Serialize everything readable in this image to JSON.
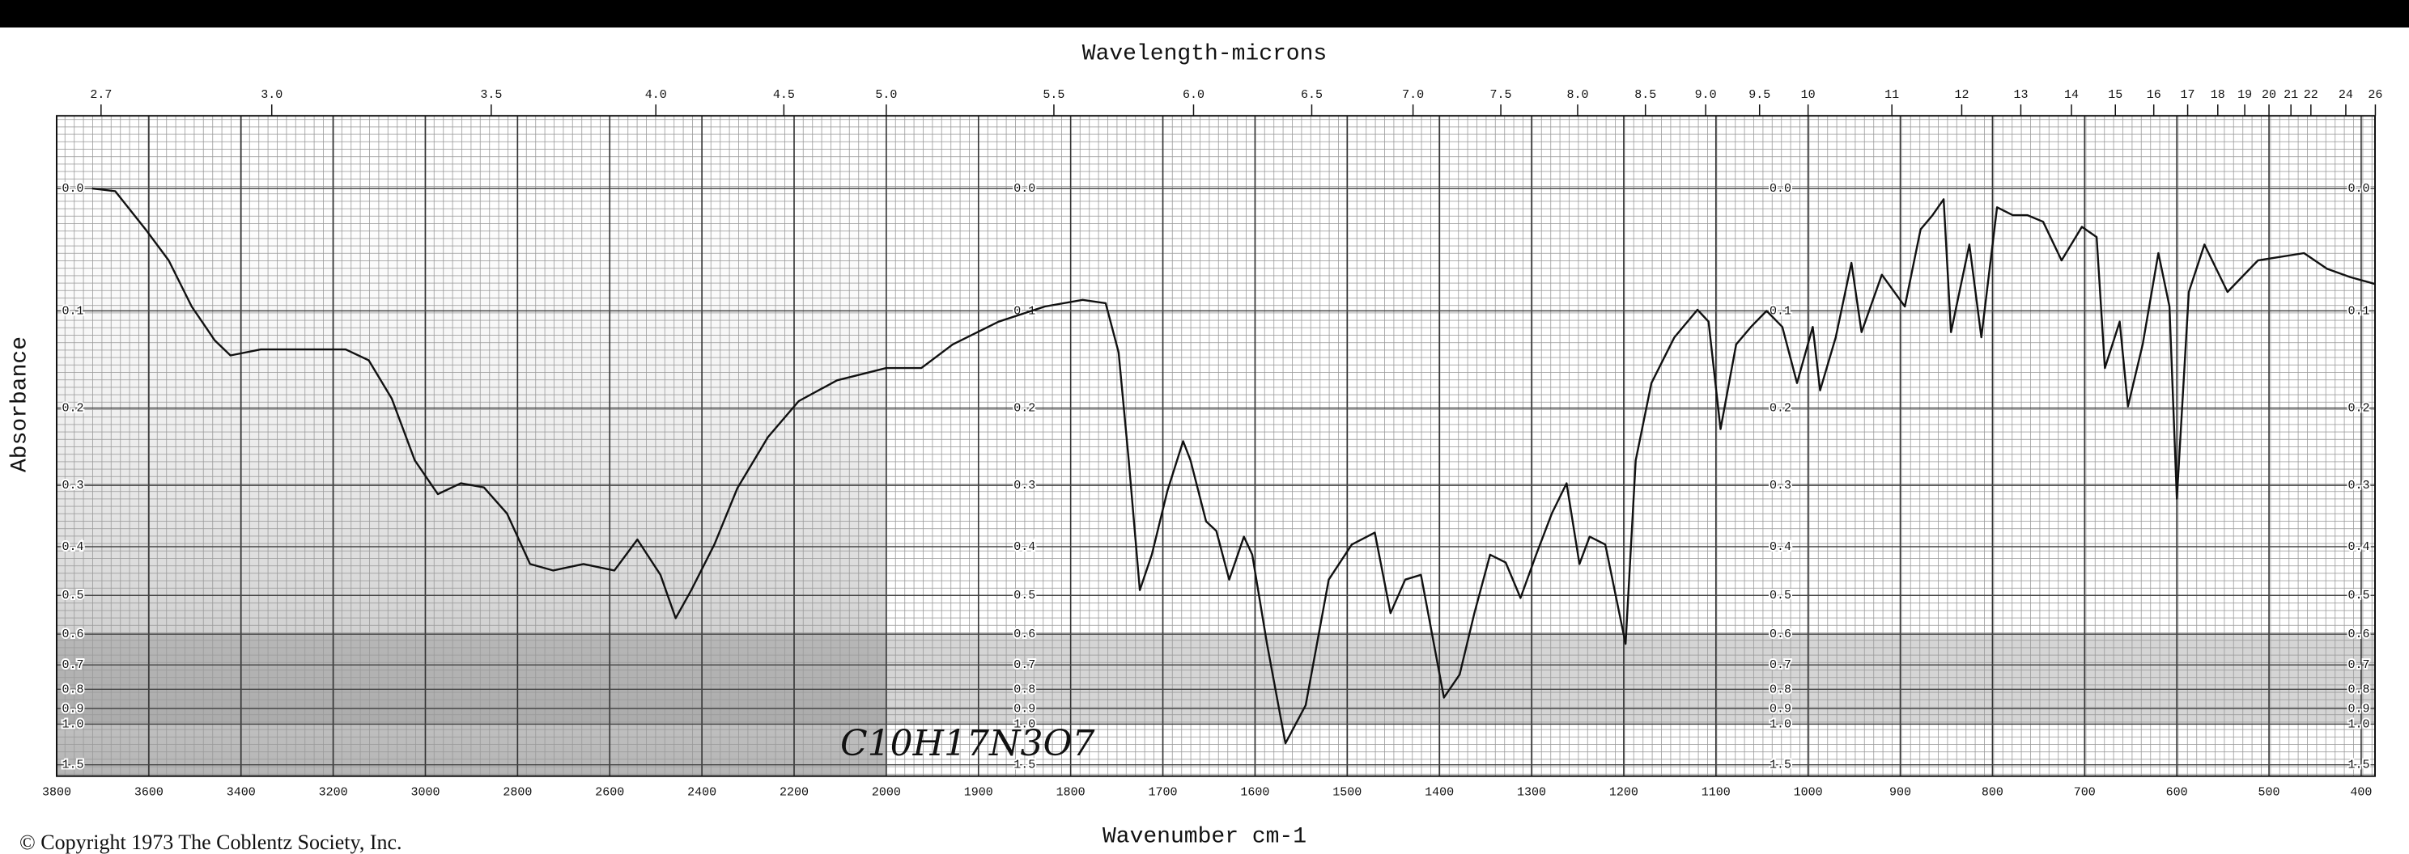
{
  "chart_data": {
    "type": "line",
    "title": "Wavelength-microns",
    "x_label": "Wavenumber cm-1",
    "y_label": "Absorbance",
    "copyright": "© Copyright 1973  The Coblentz Society, Inc.",
    "annotation": "C10H17N3O7",
    "color": "#111111",
    "grid": true,
    "x_break": 2000,
    "xlim": [
      3800,
      385
    ],
    "ylim": [
      -0.05,
      1.9
    ],
    "xticks": [
      3800,
      3600,
      3400,
      3200,
      3000,
      2800,
      2600,
      2400,
      2200,
      2000,
      1900,
      1800,
      1700,
      1600,
      1500,
      1400,
      1300,
      1200,
      1100,
      1000,
      900,
      800,
      700,
      600,
      500,
      400
    ],
    "micron_ticks": [
      2.7,
      {
        "value": 3,
        "label": "3.0"
      },
      3.5,
      {
        "value": 4,
        "label": "4.0"
      },
      4.5,
      {
        "value": 5,
        "label": "5.0"
      },
      5.5,
      {
        "value": 6,
        "label": "6.0"
      },
      6.5,
      {
        "value": 7,
        "label": "7.0"
      },
      7.5,
      {
        "value": 8,
        "label": "8.0"
      },
      8.5,
      {
        "value": 9,
        "label": "9.0"
      },
      9.5,
      10,
      11,
      12,
      13,
      14,
      15,
      16,
      17,
      18,
      19,
      20,
      21,
      22,
      24,
      26
    ],
    "yticks": [
      {
        "value": 0,
        "label": "0.0"
      },
      0.1,
      0.2,
      0.3,
      0.4,
      0.5,
      0.6,
      0.7,
      0.8,
      0.9,
      {
        "value": 1,
        "label": "1.0"
      },
      1.5
    ],
    "x": [
      3723,
      3673,
      3607,
      3557,
      3507,
      3457,
      3423,
      3357,
      3257,
      3173,
      3123,
      3073,
      3023,
      2973,
      2923,
      2873,
      2823,
      2773,
      2723,
      2657,
      2590,
      2540,
      2490,
      2457,
      2423,
      2373,
      2323,
      2257,
      2190,
      2107,
      2000,
      1962,
      1928,
      1878,
      1828,
      1787,
      1762,
      1748,
      1737,
      1725,
      1712,
      1695,
      1678,
      1670,
      1653,
      1642,
      1628,
      1612,
      1603,
      1587,
      1567,
      1545,
      1520,
      1495,
      1470,
      1453,
      1437,
      1420,
      1395,
      1378,
      1362,
      1345,
      1328,
      1312,
      1295,
      1278,
      1262,
      1248,
      1237,
      1220,
      1198,
      1187,
      1170,
      1145,
      1120,
      1108,
      1095,
      1078,
      1062,
      1045,
      1028,
      1012,
      995,
      987,
      970,
      953,
      942,
      920,
      895,
      878,
      865,
      853,
      845,
      825,
      812,
      795,
      778,
      762,
      745,
      725,
      703,
      687,
      678,
      662,
      653,
      637,
      620,
      608,
      600,
      587,
      570,
      545,
      512,
      462,
      437,
      412,
      385
    ],
    "values": [
      0,
      0.002,
      0.031,
      0.056,
      0.096,
      0.128,
      0.143,
      0.137,
      0.137,
      0.137,
      0.148,
      0.189,
      0.265,
      0.313,
      0.297,
      0.303,
      0.343,
      0.433,
      0.446,
      0.433,
      0.446,
      0.387,
      0.455,
      0.556,
      0.488,
      0.396,
      0.304,
      0.235,
      0.192,
      0.169,
      0.156,
      0.156,
      0.132,
      0.11,
      0.096,
      0.09,
      0.093,
      0.14,
      0.265,
      0.488,
      0.415,
      0.308,
      0.24,
      0.265,
      0.356,
      0.372,
      0.465,
      0.382,
      0.415,
      0.629,
      1.17,
      0.88,
      0.465,
      0.396,
      0.375,
      0.543,
      0.465,
      0.455,
      0.84,
      0.737,
      0.543,
      0.415,
      0.43,
      0.506,
      0.415,
      0.343,
      0.297,
      0.433,
      0.382,
      0.396,
      0.629,
      0.265,
      0.172,
      0.125,
      0.099,
      0.11,
      0.225,
      0.132,
      0.115,
      0.1,
      0.115,
      0.172,
      0.115,
      0.18,
      0.125,
      0.058,
      0.12,
      0.068,
      0.096,
      0.031,
      0.02,
      0.008,
      0.12,
      0.043,
      0.125,
      0.014,
      0.02,
      0.02,
      0.025,
      0.056,
      0.029,
      0.037,
      0.156,
      0.11,
      0.198,
      0.132,
      0.05,
      0.096,
      0.32,
      0.083,
      0.043,
      0.083,
      0.056,
      0.05,
      0.063,
      0.07,
      0.076
    ]
  }
}
